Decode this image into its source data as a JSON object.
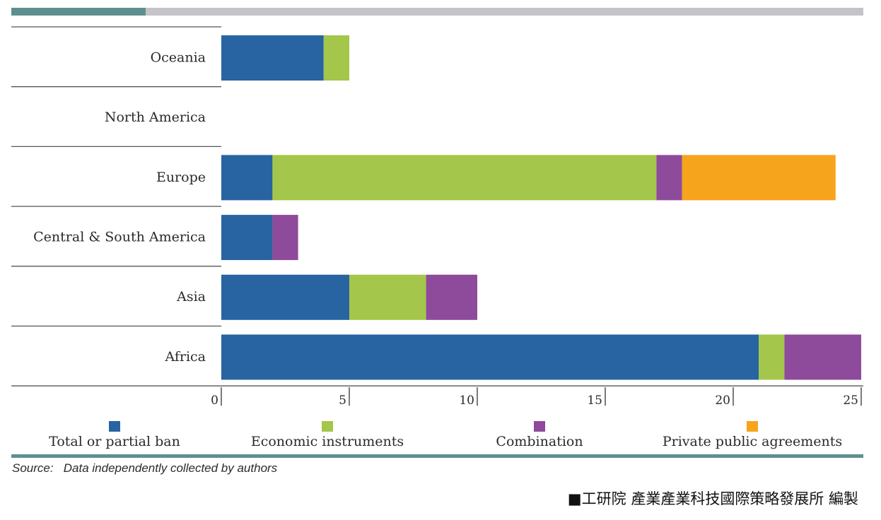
{
  "chart_data": {
    "type": "bar",
    "orientation": "horizontal",
    "stacked": true,
    "categories": [
      "Oceania",
      "North America",
      "Europe",
      "Central & South America",
      "Asia",
      "Africa"
    ],
    "series": [
      {
        "name": "Total or partial ban",
        "color": "#2864a1",
        "values": [
          4,
          0,
          2,
          2,
          5,
          21
        ]
      },
      {
        "name": "Economic instruments",
        "color": "#a4c64a",
        "values": [
          1,
          0,
          15,
          0,
          3,
          1
        ]
      },
      {
        "name": "Combination",
        "color": "#8e4a9b",
        "values": [
          0,
          0,
          1,
          1,
          2,
          3
        ]
      },
      {
        "name": "Private public agreements",
        "color": "#f6a41c",
        "values": [
          0,
          0,
          6,
          0,
          0,
          0
        ]
      }
    ],
    "xlim": [
      0,
      25
    ],
    "xticks": [
      0,
      5,
      10,
      15,
      20,
      25
    ],
    "legend_position": "bottom",
    "grid": false
  },
  "source_text": "Source:   Data independently collected by authors",
  "credit_text": "■工研院 產業產業科技國際策略發展所 編製"
}
